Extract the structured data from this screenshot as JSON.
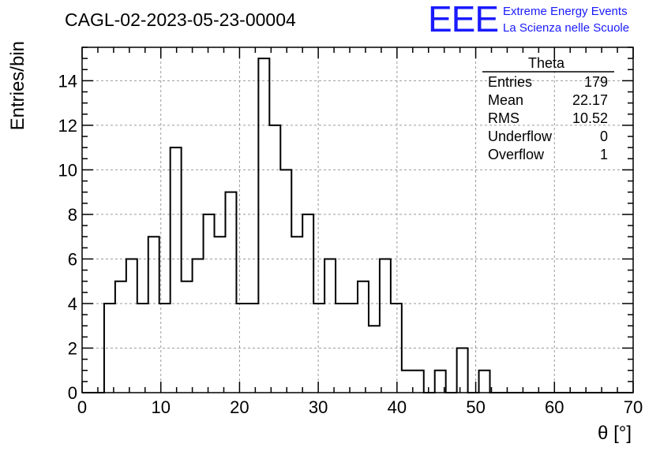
{
  "histogram_title": "CAGL-02-2023-05-23-00004",
  "logo": {
    "letters": "EEE",
    "line1": "Extreme Energy Events",
    "line2": "La Scienza nelle Scuole",
    "color": "#1a1aff"
  },
  "stats_box": {
    "title": "Theta",
    "rows": [
      {
        "label": "Entries",
        "value": "179"
      },
      {
        "label": "Mean",
        "value": "22.17"
      },
      {
        "label": "RMS",
        "value": "10.52"
      },
      {
        "label": "Underflow",
        "value": "0"
      },
      {
        "label": "Overflow",
        "value": "1"
      }
    ]
  },
  "chart_data": {
    "type": "bar",
    "style": "step-histogram",
    "xlabel": "θ [°]",
    "ylabel": "Entries/bin",
    "xlim": [
      0,
      70
    ],
    "ylim": [
      0,
      15.5
    ],
    "x_ticks": [
      0,
      10,
      20,
      30,
      40,
      50,
      60,
      70
    ],
    "y_ticks": [
      0,
      2,
      4,
      6,
      8,
      10,
      12,
      14
    ],
    "grid": true,
    "bin_width": 1.4,
    "bin_start": 0,
    "values": [
      0,
      0,
      4,
      5,
      6,
      4,
      7,
      4,
      11,
      5,
      6,
      8,
      7,
      9,
      4,
      4,
      15,
      12,
      10,
      7,
      8,
      4,
      6,
      4,
      4,
      5,
      3,
      6,
      4,
      1,
      1,
      0,
      1,
      0,
      2,
      0,
      1,
      0,
      0,
      0,
      0,
      0,
      0,
      0,
      0,
      0,
      0,
      0,
      0,
      0
    ],
    "line_color": "#000000"
  }
}
